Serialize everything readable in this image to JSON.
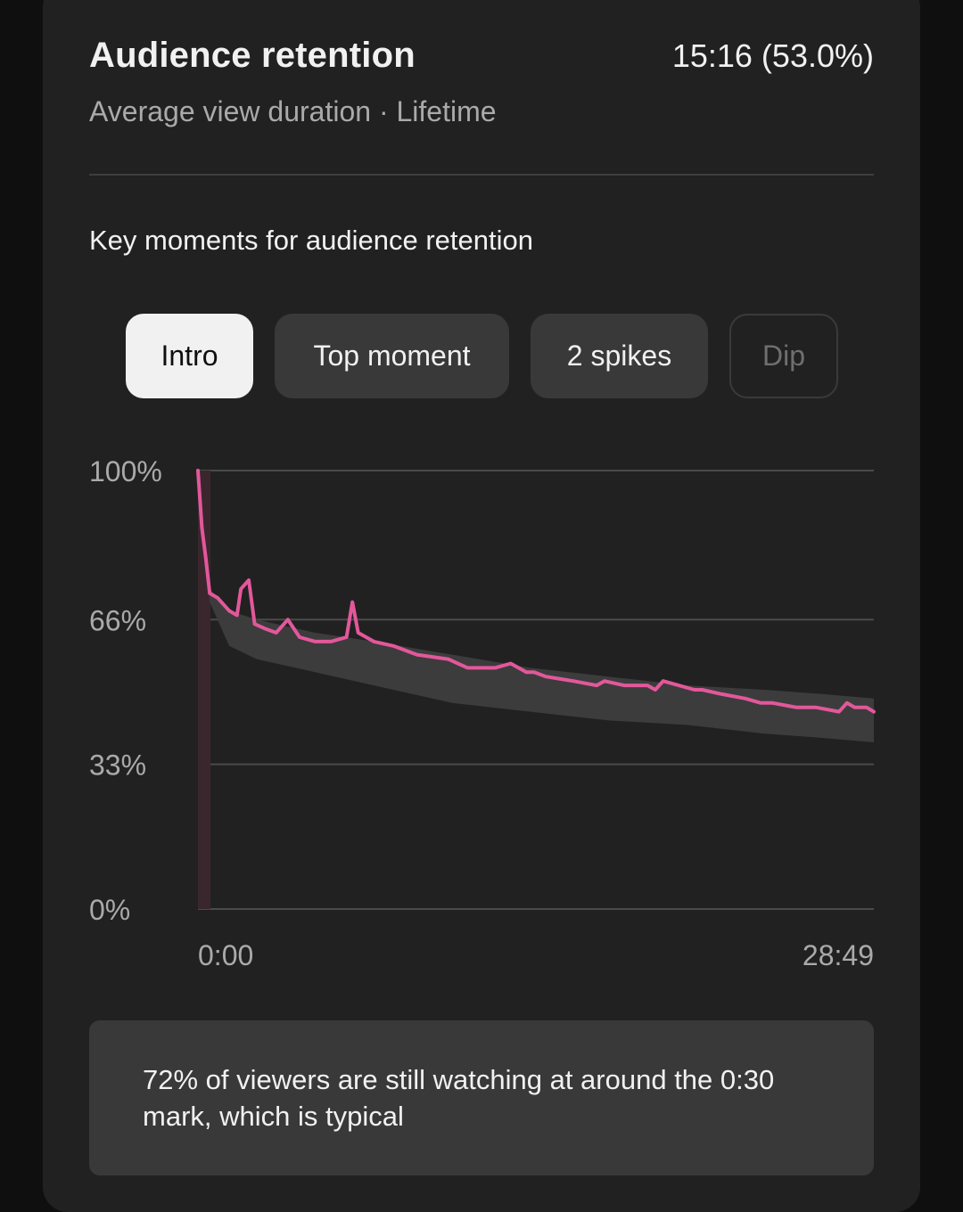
{
  "header": {
    "title": "Audience retention",
    "metric": "15:16 (53.0%)",
    "subtitle": "Average view duration · Lifetime"
  },
  "key_moments": {
    "title": "Key moments for audience retention",
    "chips": [
      {
        "label": "Intro",
        "state": "selected"
      },
      {
        "label": "Top moment",
        "state": "normal"
      },
      {
        "label": "2 spikes",
        "state": "normal"
      },
      {
        "label": "Dip",
        "state": "disabled"
      }
    ]
  },
  "colors": {
    "accent": "#e2589a",
    "band": "#3c3c3c",
    "intro_highlight": "#3a272e",
    "background": "#212121"
  },
  "chart_data": {
    "type": "line",
    "xlabel": "",
    "ylabel": "",
    "x_range_seconds": [
      0,
      1729
    ],
    "x_tick_labels": [
      "0:00",
      "28:49"
    ],
    "y_ticks": [
      100,
      66,
      33,
      0
    ],
    "y_tick_labels": [
      "100%",
      "66%",
      "33%",
      "0%"
    ],
    "ylim": [
      0,
      100
    ],
    "grid": true,
    "highlight_range_seconds": [
      0,
      30
    ],
    "series": [
      {
        "values": [
          [
            0,
            100
          ],
          [
            10,
            87
          ],
          [
            20,
            80
          ],
          [
            30,
            72
          ],
          [
            50,
            71
          ],
          [
            80,
            68
          ],
          [
            100,
            67
          ],
          [
            110,
            73
          ],
          [
            130,
            75
          ],
          [
            145,
            65
          ],
          [
            170,
            64
          ],
          [
            200,
            63
          ],
          [
            230,
            66
          ],
          [
            260,
            62
          ],
          [
            300,
            61
          ],
          [
            340,
            61
          ],
          [
            380,
            62
          ],
          [
            395,
            70
          ],
          [
            410,
            63
          ],
          [
            450,
            61
          ],
          [
            500,
            60
          ],
          [
            560,
            58
          ],
          [
            640,
            57
          ],
          [
            690,
            55
          ],
          [
            760,
            55
          ],
          [
            800,
            56
          ],
          [
            840,
            54
          ],
          [
            860,
            54
          ],
          [
            890,
            53
          ],
          [
            960,
            52
          ],
          [
            1020,
            51
          ],
          [
            1040,
            52
          ],
          [
            1090,
            51
          ],
          [
            1150,
            51
          ],
          [
            1170,
            50
          ],
          [
            1190,
            52
          ],
          [
            1230,
            51
          ],
          [
            1270,
            50
          ],
          [
            1290,
            50
          ],
          [
            1340,
            49
          ],
          [
            1400,
            48
          ],
          [
            1440,
            47
          ],
          [
            1470,
            47
          ],
          [
            1530,
            46
          ],
          [
            1580,
            46
          ],
          [
            1640,
            45
          ],
          [
            1660,
            47
          ],
          [
            1680,
            46
          ],
          [
            1710,
            46
          ],
          [
            1729,
            45
          ]
        ]
      }
    ],
    "typical_range": [
      {
        "x": 0,
        "low": 100,
        "high": 100
      },
      {
        "x": 30,
        "low": 70,
        "high": 73
      },
      {
        "x": 80,
        "low": 60,
        "high": 68
      },
      {
        "x": 150,
        "low": 57,
        "high": 66
      },
      {
        "x": 300,
        "low": 54,
        "high": 63
      },
      {
        "x": 450,
        "low": 51,
        "high": 61
      },
      {
        "x": 650,
        "low": 47,
        "high": 58
      },
      {
        "x": 850,
        "low": 45,
        "high": 55
      },
      {
        "x": 1050,
        "low": 43,
        "high": 53
      },
      {
        "x": 1250,
        "low": 42,
        "high": 51
      },
      {
        "x": 1450,
        "low": 40,
        "high": 50
      },
      {
        "x": 1600,
        "low": 39,
        "high": 49
      },
      {
        "x": 1729,
        "low": 38,
        "high": 48
      }
    ]
  },
  "insight": {
    "text": "72% of viewers are still watching at around the 0:30 mark, which is typical"
  }
}
